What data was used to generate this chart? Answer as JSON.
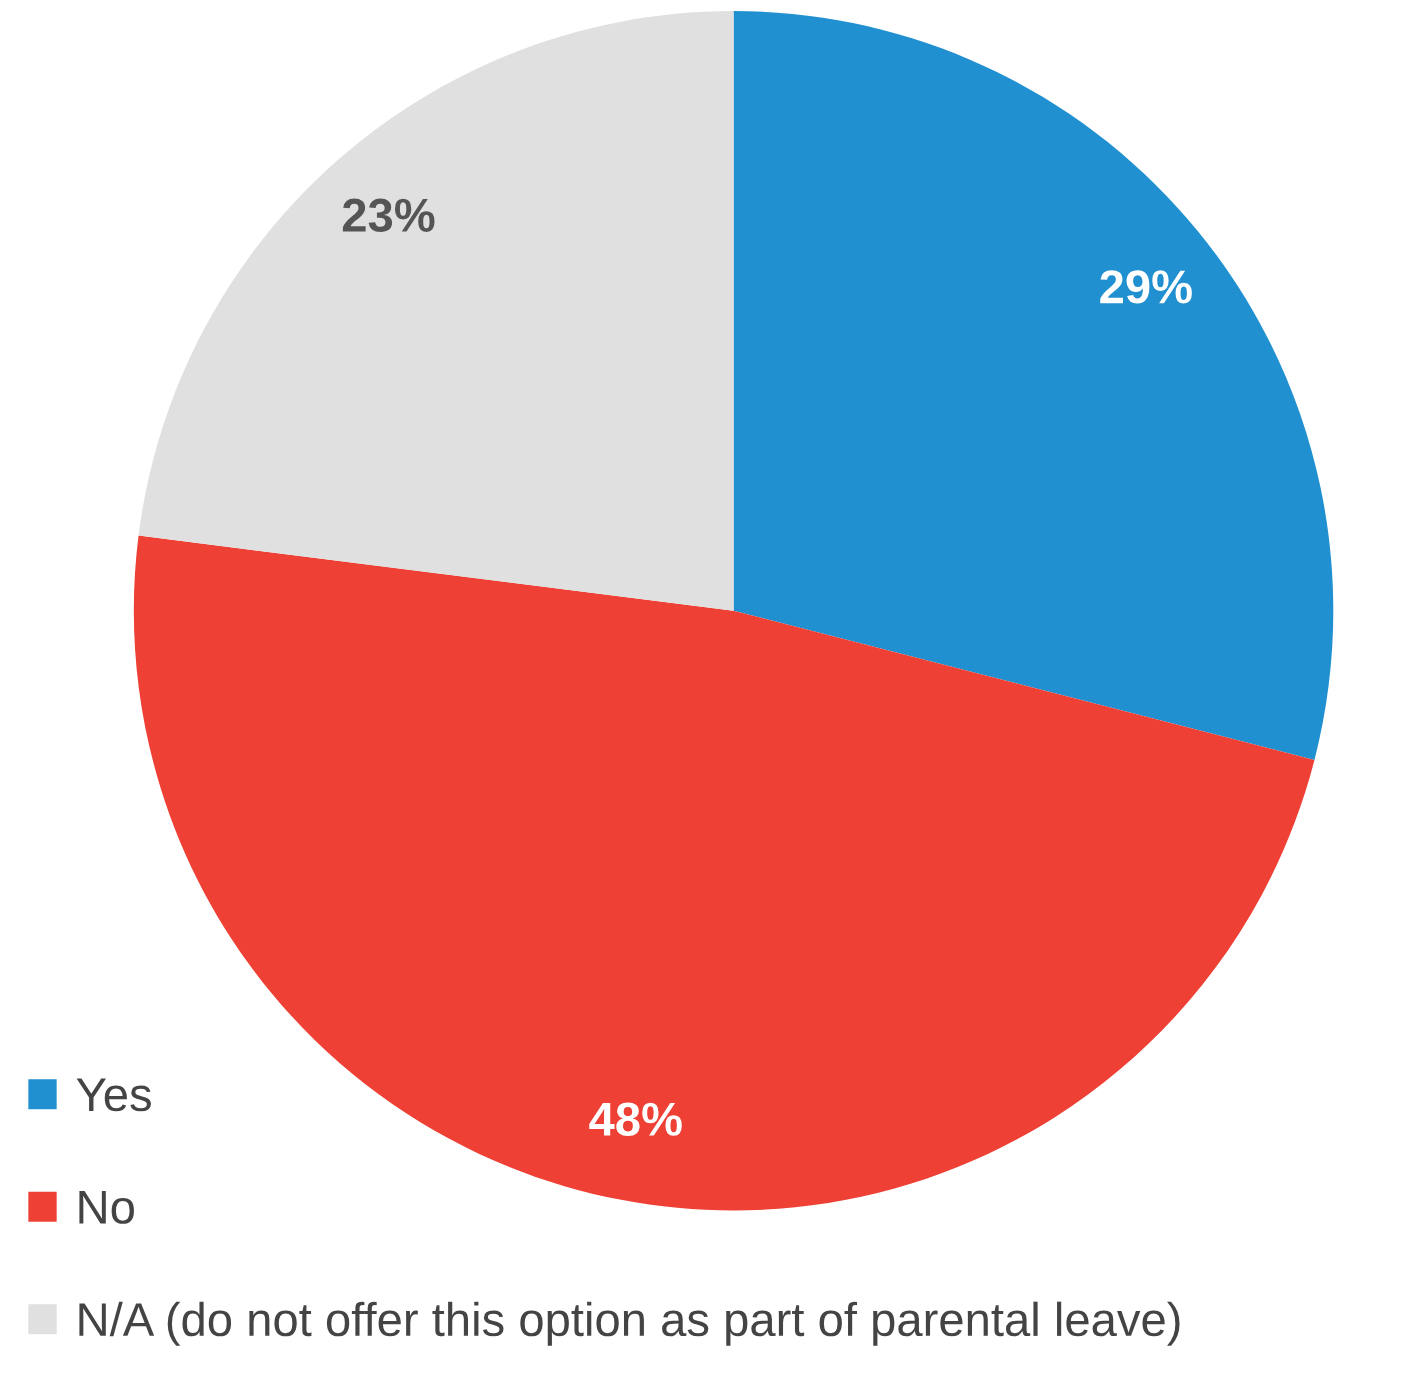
{
  "chart_data": {
    "type": "pie",
    "categories": [
      "Yes",
      "No",
      "N/A (do not offer this option as part of parental leave)"
    ],
    "values": [
      29,
      48,
      23
    ],
    "colors": [
      "#2090d0",
      "#ee4035",
      "#e0e0e0"
    ],
    "value_labels": [
      "29%",
      "48%",
      "23%"
    ],
    "legend": "bottom left"
  }
}
